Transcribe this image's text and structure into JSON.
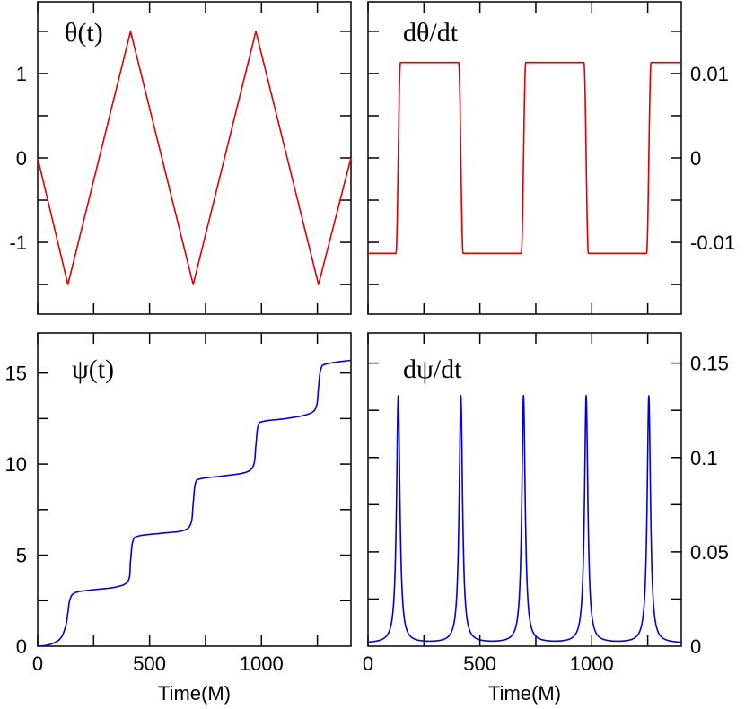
{
  "chart_data": [
    {
      "type": "line",
      "id": "theta",
      "title": "θ(t)",
      "xlabel": "",
      "ylabel": "",
      "xlim": [
        0,
        1400
      ],
      "ylim": [
        -1.85,
        1.85
      ],
      "xticks": [
        0,
        500,
        1000
      ],
      "xtick_labels": [],
      "yticks": [
        -1,
        0,
        1
      ],
      "ytick_labels": [
        "-1",
        "0",
        "1"
      ],
      "y_axis_side": "left",
      "color": "#e00000",
      "series": [
        {
          "name": "θ(t)",
          "x": [
            0,
            135,
            415,
            695,
            975,
            1255,
            1400
          ],
          "y": [
            0,
            -1.5,
            1.5,
            -1.5,
            1.5,
            -1.5,
            0
          ]
        }
      ]
    },
    {
      "type": "line",
      "id": "dtheta",
      "title": "dθ/dt",
      "xlabel": "",
      "ylabel": "",
      "xlim": [
        0,
        1400
      ],
      "ylim": [
        -0.0185,
        0.0185
      ],
      "xticks": [
        0,
        500,
        1000
      ],
      "xtick_labels": [],
      "yticks": [
        -0.01,
        0,
        0.01
      ],
      "ytick_labels": [
        "-0.01",
        "0",
        "0.01"
      ],
      "y_axis_side": "right",
      "color": "#e00000",
      "series": [
        {
          "name": "dθ/dt",
          "x": [
            0,
            125,
            145,
            405,
            425,
            685,
            705,
            965,
            985,
            1245,
            1265,
            1400
          ],
          "y": [
            -0.0113,
            -0.0113,
            0.0113,
            0.0113,
            -0.0113,
            -0.0113,
            0.0113,
            0.0113,
            -0.0113,
            -0.0113,
            0.0113,
            0.0113
          ]
        }
      ]
    },
    {
      "type": "line",
      "id": "psi",
      "title": "ψ(t)",
      "xlabel": "Time(M)",
      "ylabel": "",
      "xlim": [
        0,
        1400
      ],
      "ylim": [
        0,
        17.2
      ],
      "xticks": [
        0,
        500,
        1000
      ],
      "xtick_labels": [
        "0",
        "500",
        "1000"
      ],
      "yticks": [
        0,
        5,
        10,
        15
      ],
      "ytick_labels": [
        "0",
        "5",
        "10",
        "15"
      ],
      "y_axis_side": "left",
      "color": "#0000e0",
      "series": [
        {
          "name": "ψ(t)",
          "x": [
            0,
            50,
            100,
            125,
            135,
            145,
            170,
            250,
            350,
            405,
            415,
            425,
            450,
            550,
            650,
            685,
            695,
            705,
            730,
            830,
            930,
            965,
            975,
            985,
            1010,
            1110,
            1210,
            1245,
            1255,
            1265,
            1290,
            1400
          ],
          "y": [
            0,
            0.08,
            0.4,
            1.1,
            1.85,
            2.6,
            2.95,
            3.1,
            3.25,
            3.6,
            4.7,
            5.75,
            6.05,
            6.2,
            6.35,
            6.75,
            7.85,
            8.95,
            9.2,
            9.35,
            9.55,
            9.95,
            11.0,
            12.1,
            12.35,
            12.5,
            12.75,
            13.15,
            14.2,
            15.2,
            15.5,
            15.7
          ]
        }
      ]
    },
    {
      "type": "line",
      "id": "dpsi",
      "title": "dψ/dt",
      "xlabel": "Time(M)",
      "ylabel": "",
      "xlim": [
        0,
        1400
      ],
      "ylim": [
        0,
        0.166
      ],
      "xticks": [
        0,
        500,
        1000
      ],
      "xtick_labels": [
        "0",
        "500",
        "1000"
      ],
      "yticks": [
        0,
        0.05,
        0.1,
        0.15
      ],
      "ytick_labels": [
        "0",
        "0.05",
        "0.1",
        "0.15"
      ],
      "y_axis_side": "right",
      "color": "#0000e0",
      "series": [
        {
          "name": "dψ/dt",
          "peaks_x": [
            135,
            415,
            695,
            975,
            1255
          ],
          "peak_y": 0.131,
          "x_samples": [
            0,
            1400
          ],
          "note": ""
        }
      ]
    }
  ]
}
